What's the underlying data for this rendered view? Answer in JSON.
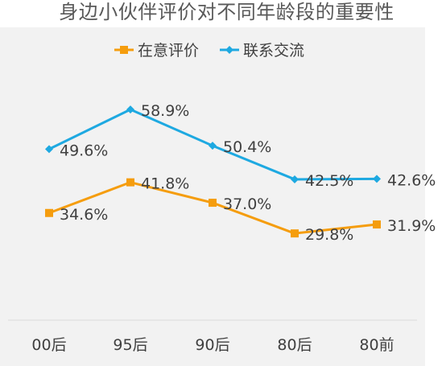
{
  "chart_data": {
    "type": "line",
    "title": "身边小伙伴评价对不同年龄段的重要性",
    "categories": [
      "00后",
      "95后",
      "90后",
      "80后",
      "80前"
    ],
    "series": [
      {
        "name": "在意评价",
        "values": [
          34.6,
          41.8,
          37.0,
          29.8,
          31.9
        ],
        "labels": [
          "34.6%",
          "41.8%",
          "37.0%",
          "29.8%",
          "31.9%"
        ],
        "color": "#f59d0e",
        "marker": "square"
      },
      {
        "name": "联系交流",
        "values": [
          49.6,
          58.9,
          50.4,
          42.5,
          42.6
        ],
        "labels": [
          "49.6%",
          "58.9%",
          "50.4%",
          "42.5%",
          "42.6%"
        ],
        "color": "#1ea9e1",
        "marker": "diamond"
      }
    ],
    "legend_position": "top",
    "grid": false,
    "background_color": "#f2f2f2",
    "axis_line_color": "#d9d9d9"
  }
}
